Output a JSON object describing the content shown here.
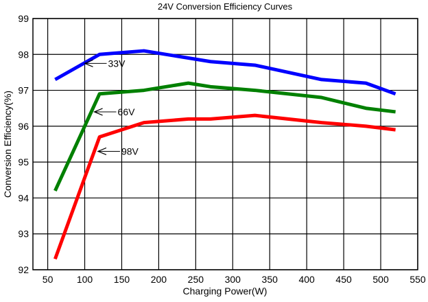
{
  "chart_data": {
    "type": "line",
    "title": "24V Conversion Efficiency Curves",
    "xlabel": "Charging Power(W)",
    "ylabel": "Conversion Efficiency(%)",
    "xlim": [
      30,
      550
    ],
    "ylim": [
      92,
      99
    ],
    "xticks": [
      50,
      100,
      150,
      200,
      250,
      300,
      350,
      400,
      450,
      500,
      550
    ],
    "yticks": [
      92,
      93,
      94,
      95,
      96,
      97,
      98,
      99
    ],
    "grid": true,
    "x": [
      60,
      120,
      180,
      240,
      270,
      330,
      420,
      480,
      520
    ],
    "series": [
      {
        "name": "33V",
        "color": "#0000ff",
        "values": [
          97.3,
          98.0,
          98.1,
          97.9,
          97.8,
          97.7,
          97.3,
          97.2,
          96.9
        ]
      },
      {
        "name": "66V",
        "color": "#008000",
        "values": [
          94.2,
          96.9,
          97.0,
          97.2,
          97.1,
          97.0,
          96.8,
          96.5,
          96.4
        ]
      },
      {
        "name": "98V",
        "color": "#ff0000",
        "values": [
          92.3,
          95.7,
          96.1,
          96.2,
          96.2,
          96.3,
          96.1,
          96.0,
          95.9
        ]
      }
    ],
    "annotations": [
      {
        "text": "33V",
        "x": 100,
        "y": 97.75
      },
      {
        "text": "66V",
        "x": 113,
        "y": 96.4
      },
      {
        "text": "98V",
        "x": 118,
        "y": 95.3
      }
    ]
  }
}
